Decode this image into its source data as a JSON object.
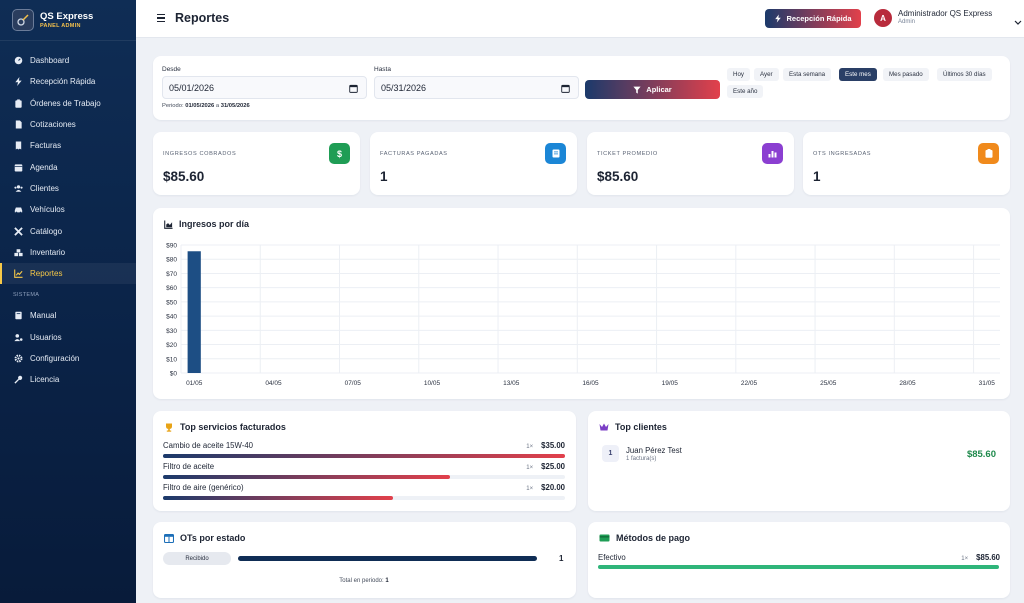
{
  "brand": {
    "title": "QS Express",
    "subtitle": "PANEL ADMIN"
  },
  "sidebar": {
    "items": [
      {
        "label": "Dashboard",
        "icon": "gauge-icon"
      },
      {
        "label": "Recepción Rápida",
        "icon": "bolt-icon"
      },
      {
        "label": "Órdenes de Trabajo",
        "icon": "clipboard-icon"
      },
      {
        "label": "Cotizaciones",
        "icon": "file-icon"
      },
      {
        "label": "Facturas",
        "icon": "invoice-icon"
      },
      {
        "label": "Agenda",
        "icon": "calendar-icon"
      },
      {
        "label": "Clientes",
        "icon": "users-icon"
      },
      {
        "label": "Vehículos",
        "icon": "car-icon"
      },
      {
        "label": "Catálogo",
        "icon": "tools-icon"
      },
      {
        "label": "Inventario",
        "icon": "boxes-icon"
      },
      {
        "label": "Reportes",
        "icon": "chart-line-icon",
        "active": true
      }
    ],
    "section_label": "SISTEMA",
    "system_items": [
      {
        "label": "Manual",
        "icon": "book-icon"
      },
      {
        "label": "Usuarios",
        "icon": "user-gear-icon"
      },
      {
        "label": "Configuración",
        "icon": "gear-icon"
      },
      {
        "label": "Licencia",
        "icon": "key-icon"
      }
    ]
  },
  "header": {
    "title": "Reportes",
    "quick_button": "Recepción Rápida",
    "user": {
      "initial": "A",
      "name": "Administrador QS Express",
      "role": "Admin"
    }
  },
  "filter": {
    "from_label": "Desde",
    "from_value": "05/01/2026",
    "to_label": "Hasta",
    "to_value": "05/31/2026",
    "period_prefix": "Periodo:",
    "period_from": "01/05/2026",
    "period_sep": "a",
    "period_to": "31/05/2026",
    "apply_label": "Aplicar",
    "chips": [
      "Hoy",
      "Ayer",
      "Esta semana",
      "Este mes",
      "Mes pasado",
      "Últimos 30 días",
      "Este año"
    ],
    "active_chip": "Este mes"
  },
  "stats": [
    {
      "label": "INGRESOS COBRADOS",
      "value": "$85.60",
      "icon": "dollar-icon",
      "color": "#1f9d55"
    },
    {
      "label": "FACTURAS PAGADAS",
      "value": "1",
      "icon": "receipt-icon",
      "color": "#1b86d6"
    },
    {
      "label": "TICKET PROMEDIO",
      "value": "$85.60",
      "icon": "bar-chart-icon",
      "color": "#8b3fd1"
    },
    {
      "label": "OTS INGRESADAS",
      "value": "1",
      "icon": "clipboard-icon",
      "color": "#f08a1c"
    }
  ],
  "income_chart": {
    "title": "Ingresos por día"
  },
  "chart_data": {
    "type": "bar",
    "title": "Ingresos por día",
    "categories": [
      "01/05",
      "02/05",
      "03/05",
      "04/05",
      "05/05",
      "06/05",
      "07/05",
      "08/05",
      "09/05",
      "10/05",
      "11/05",
      "12/05",
      "13/05",
      "14/05",
      "15/05",
      "16/05",
      "17/05",
      "18/05",
      "19/05",
      "20/05",
      "21/05",
      "22/05",
      "23/05",
      "24/05",
      "25/05",
      "26/05",
      "27/05",
      "28/05",
      "29/05",
      "30/05",
      "31/05"
    ],
    "values": [
      85.6,
      0,
      0,
      0,
      0,
      0,
      0,
      0,
      0,
      0,
      0,
      0,
      0,
      0,
      0,
      0,
      0,
      0,
      0,
      0,
      0,
      0,
      0,
      0,
      0,
      0,
      0,
      0,
      0,
      0,
      0
    ],
    "tick_labels_x": [
      "01/05",
      "04/05",
      "07/05",
      "10/05",
      "13/05",
      "16/05",
      "19/05",
      "22/05",
      "25/05",
      "28/05",
      "31/05"
    ],
    "y_ticks": [
      "$90",
      "$80",
      "$70",
      "$60",
      "$50",
      "$40",
      "$30",
      "$20",
      "$10",
      "$0"
    ],
    "ylim": [
      0,
      90
    ],
    "grid": true,
    "bar_color": "#1d4e84"
  },
  "top_services": {
    "title": "Top servicios facturados",
    "items": [
      {
        "name": "Cambio de aceite 15W-40",
        "qty": "1×",
        "amount": "$35.00",
        "ratio": 1.0
      },
      {
        "name": "Filtro de aceite",
        "qty": "1×",
        "amount": "$25.00",
        "ratio": 0.714
      },
      {
        "name": "Filtro de aire (genérico)",
        "qty": "1×",
        "amount": "$20.00",
        "ratio": 0.571
      }
    ]
  },
  "top_clients": {
    "title": "Top clientes",
    "items": [
      {
        "rank": "1",
        "name": "Juan Pérez Test",
        "sub": "1 factura(s)",
        "total": "$85.60"
      }
    ]
  },
  "ots_status": {
    "title": "OTs por estado",
    "items": [
      {
        "status": "Recibido",
        "count": "1",
        "ratio": 1.0
      }
    ],
    "total_label": "Total en periodo:",
    "total_value": "1"
  },
  "payment_methods": {
    "title": "Métodos de pago",
    "items": [
      {
        "name": "Efectivo",
        "qty": "1×",
        "amount": "$85.60",
        "ratio": 1.0
      }
    ]
  }
}
